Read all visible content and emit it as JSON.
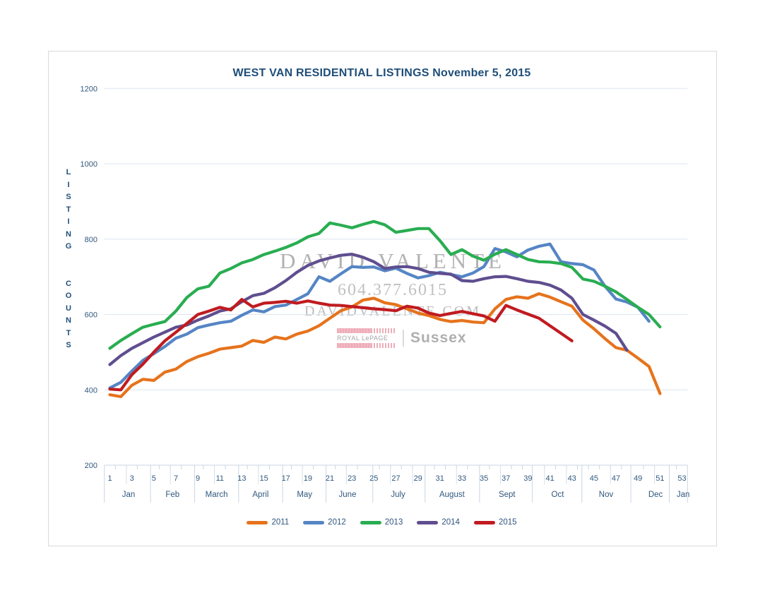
{
  "watermark": {
    "name": "DAVID VALENTE",
    "phone": "604.377.6015",
    "website": "DAVIDVALENTE.COM",
    "brokerage_brand": "ROYAL LePAGE",
    "brokerage_office": "Sussex"
  },
  "chart_data": {
    "type": "line",
    "title": "WEST VAN RESIDENTIAL LISTINGS November 5, 2015",
    "ylabel": "LISTING COUNTS",
    "ylim": [
      200,
      1200
    ],
    "yticks": [
      200,
      400,
      600,
      800,
      1000,
      1200
    ],
    "grid": "horizontal",
    "legend_position": "bottom",
    "x_axis": {
      "unit": "week of year",
      "week_ticks": [
        1,
        3,
        5,
        7,
        9,
        11,
        13,
        15,
        17,
        19,
        21,
        23,
        25,
        27,
        29,
        31,
        33,
        35,
        37,
        39,
        41,
        43,
        45,
        47,
        49,
        51,
        53
      ],
      "months": [
        {
          "label": "Jan",
          "center_week": 2.7
        },
        {
          "label": "Feb",
          "center_week": 6.7
        },
        {
          "label": "March",
          "center_week": 10.7
        },
        {
          "label": "April",
          "center_week": 14.7
        },
        {
          "label": "May",
          "center_week": 18.7
        },
        {
          "label": "June",
          "center_week": 22.6
        },
        {
          "label": "July",
          "center_week": 27.2
        },
        {
          "label": "August",
          "center_week": 32.1
        },
        {
          "label": "Sept",
          "center_week": 37.1
        },
        {
          "label": "Oct",
          "center_week": 41.7
        },
        {
          "label": "Nov",
          "center_week": 46.1
        },
        {
          "label": "Dec",
          "center_week": 50.6
        },
        {
          "label": "Jan",
          "center_week": 53.1
        }
      ]
    },
    "series": [
      {
        "name": "2011",
        "color": "#E6731C",
        "start_week": 1,
        "values": [
          387,
          382,
          412,
          428,
          425,
          447,
          455,
          475,
          488,
          497,
          508,
          512,
          516,
          531,
          526,
          540,
          535,
          548,
          556,
          570,
          590,
          610,
          620,
          638,
          643,
          631,
          626,
          615,
          604,
          597,
          587,
          581,
          584,
          580,
          578,
          615,
          640,
          647,
          643,
          655,
          646,
          634,
          622,
          585,
          562,
          536,
          512,
          505,
          484,
          462,
          390
        ]
      },
      {
        "name": "2012",
        "color": "#5585C5",
        "start_week": 1,
        "values": [
          405,
          420,
          450,
          478,
          496,
          515,
          537,
          548,
          565,
          572,
          578,
          582,
          598,
          612,
          607,
          621,
          625,
          640,
          655,
          700,
          688,
          708,
          727,
          725,
          726,
          716,
          723,
          709,
          697,
          703,
          712,
          706,
          700,
          710,
          727,
          775,
          766,
          753,
          771,
          781,
          787,
          740,
          735,
          732,
          718,
          675,
          641,
          633,
          619,
          582
        ]
      },
      {
        "name": "2013",
        "color": "#29AD51",
        "start_week": 1,
        "values": [
          510,
          531,
          549,
          566,
          574,
          581,
          609,
          645,
          668,
          675,
          710,
          722,
          737,
          746,
          759,
          768,
          778,
          790,
          806,
          815,
          843,
          837,
          830,
          839,
          847,
          838,
          818,
          823,
          828,
          828,
          796,
          759,
          772,
          755,
          744,
          760,
          772,
          759,
          746,
          740,
          739,
          735,
          725,
          694,
          688,
          675,
          660,
          640,
          619,
          600,
          567
        ]
      },
      {
        "name": "2014",
        "color": "#5F4E8F",
        "start_week": 1,
        "values": [
          467,
          491,
          510,
          525,
          540,
          553,
          566,
          572,
          585,
          596,
          609,
          615,
          634,
          650,
          656,
          671,
          690,
          712,
          730,
          742,
          750,
          757,
          760,
          752,
          740,
          722,
          726,
          727,
          722,
          712,
          709,
          707,
          690,
          688,
          695,
          700,
          701,
          695,
          688,
          685,
          678,
          665,
          643,
          600,
          585,
          569,
          550,
          505
        ]
      },
      {
        "name": "2015",
        "color": "#C01B20",
        "start_week": 1,
        "values": [
          402,
          400,
          440,
          468,
          500,
          530,
          553,
          576,
          600,
          609,
          619,
          612,
          640,
          620,
          630,
          632,
          635,
          630,
          636,
          630,
          625,
          624,
          621,
          618,
          615,
          613,
          610,
          622,
          617,
          604,
          597,
          603,
          608,
          602,
          596,
          582,
          624,
          612,
          601,
          590,
          570,
          550,
          530
        ]
      }
    ]
  }
}
